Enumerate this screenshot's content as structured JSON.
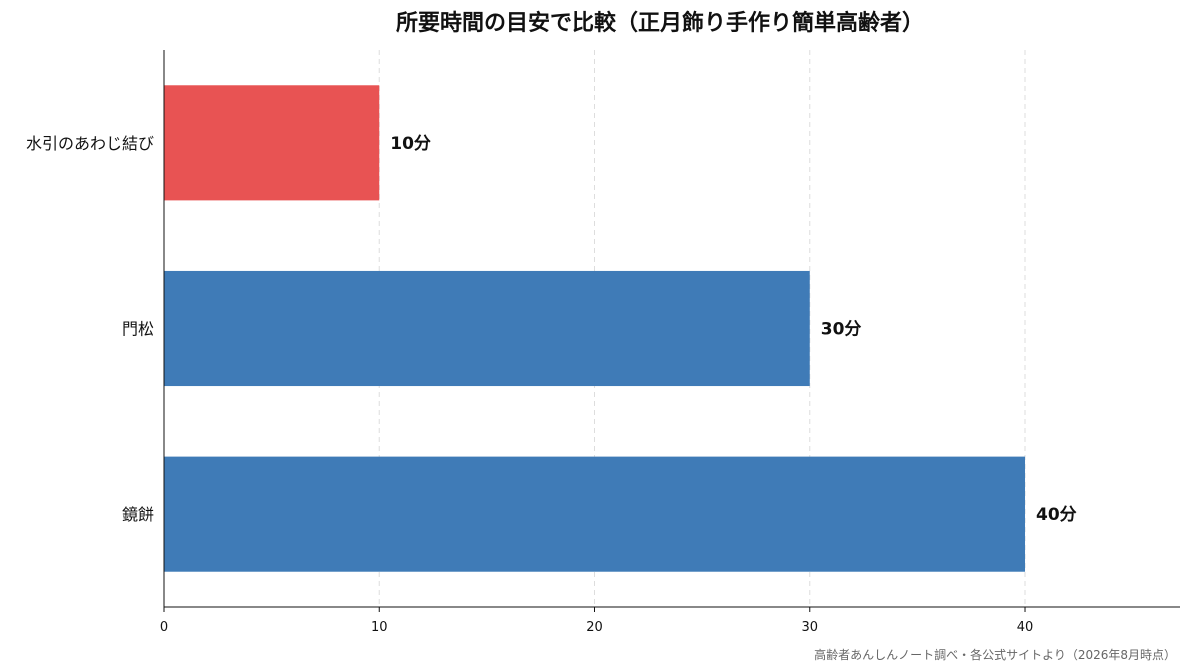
{
  "chart_data": {
    "type": "bar",
    "orientation": "horizontal",
    "title": "所要時間の目安で比較（正月飾り手作り簡単高齢者）",
    "categories": [
      "水引のあわじ結び",
      "門松",
      "鏡餅"
    ],
    "values": [
      10,
      30,
      40
    ],
    "data_labels": [
      "10分",
      "30分",
      "40分"
    ],
    "bar_colors": [
      "#e85353",
      "#3f7bb7",
      "#3f7bb7"
    ],
    "x_ticks": [
      0,
      10,
      20,
      30,
      40
    ],
    "xlim": [
      0,
      47.2
    ],
    "grid": "vertical dashed",
    "legend": "none",
    "xlabel": "",
    "ylabel": ""
  },
  "source_note": "高齢者あんしんノート調べ・各公式サイトより（2026年8月時点）"
}
